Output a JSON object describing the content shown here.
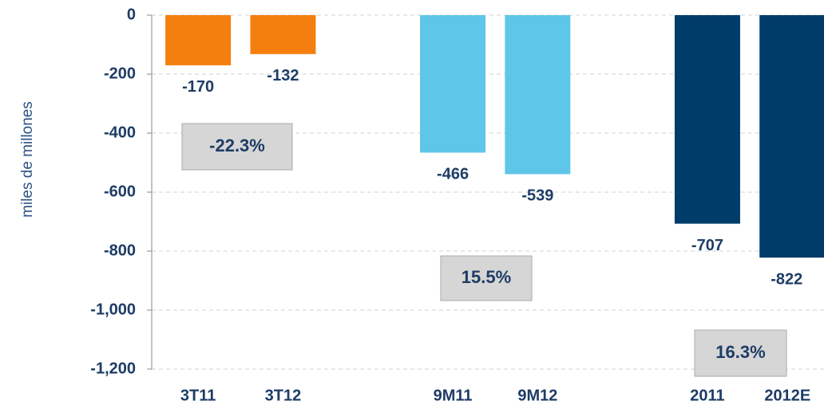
{
  "chart_data": {
    "type": "bar",
    "y_axis_label": "miles de millones",
    "categories": [
      "3T11",
      "3T12",
      "9M11",
      "9M12",
      "2011",
      "2012E"
    ],
    "values": [
      -170,
      -132,
      -466,
      -539,
      -707,
      -822
    ],
    "colors": [
      "#f57f0e",
      "#f57f0e",
      "#5ec6e8",
      "#5ec6e8",
      "#003c6a",
      "#003c6a"
    ],
    "ylim": [
      -1200,
      0
    ],
    "yticks": [
      0,
      -200,
      -400,
      -600,
      -800,
      {
        "value": -1000,
        "label": "-1,000"
      },
      {
        "value": -1200,
        "label": "-1,200"
      }
    ],
    "grid": true,
    "annotations": [
      "-22.3%",
      "15.5%",
      "16.3%"
    ]
  }
}
